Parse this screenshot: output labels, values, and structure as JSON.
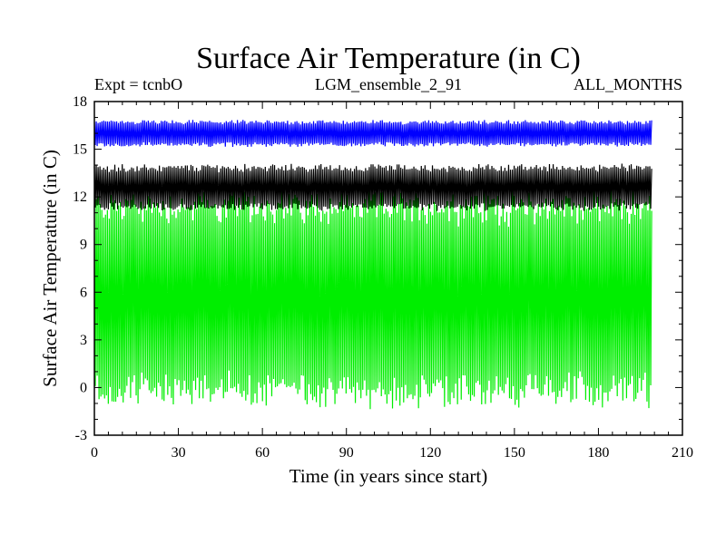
{
  "chart_data": {
    "type": "line",
    "title": "Surface Air Temperature (in C)",
    "subtitle_left": "Expt = tcnbO",
    "subtitle_center": "LGM_ensemble_2_91",
    "subtitle_right": "ALL_MONTHS",
    "xlabel": "Time (in years since start)",
    "ylabel": "Surface Air Temperature (in C)",
    "xlim": [
      0,
      210
    ],
    "ylim": [
      -3,
      18
    ],
    "xticks": [
      0,
      30,
      60,
      90,
      120,
      150,
      180,
      210
    ],
    "yticks": [
      -3,
      0,
      3,
      6,
      9,
      12,
      15,
      18
    ],
    "x_end": 199,
    "series": [
      {
        "name": "green",
        "color": "#00ee00",
        "mean": 5.6,
        "low": -1.0,
        "high": 12.2
      },
      {
        "name": "black",
        "color": "#000000",
        "mean": 12.6,
        "low": 11.2,
        "high": 14.0
      },
      {
        "name": "blue",
        "color": "#0000ff",
        "mean": 16.0,
        "low": 15.2,
        "high": 16.8
      }
    ]
  }
}
